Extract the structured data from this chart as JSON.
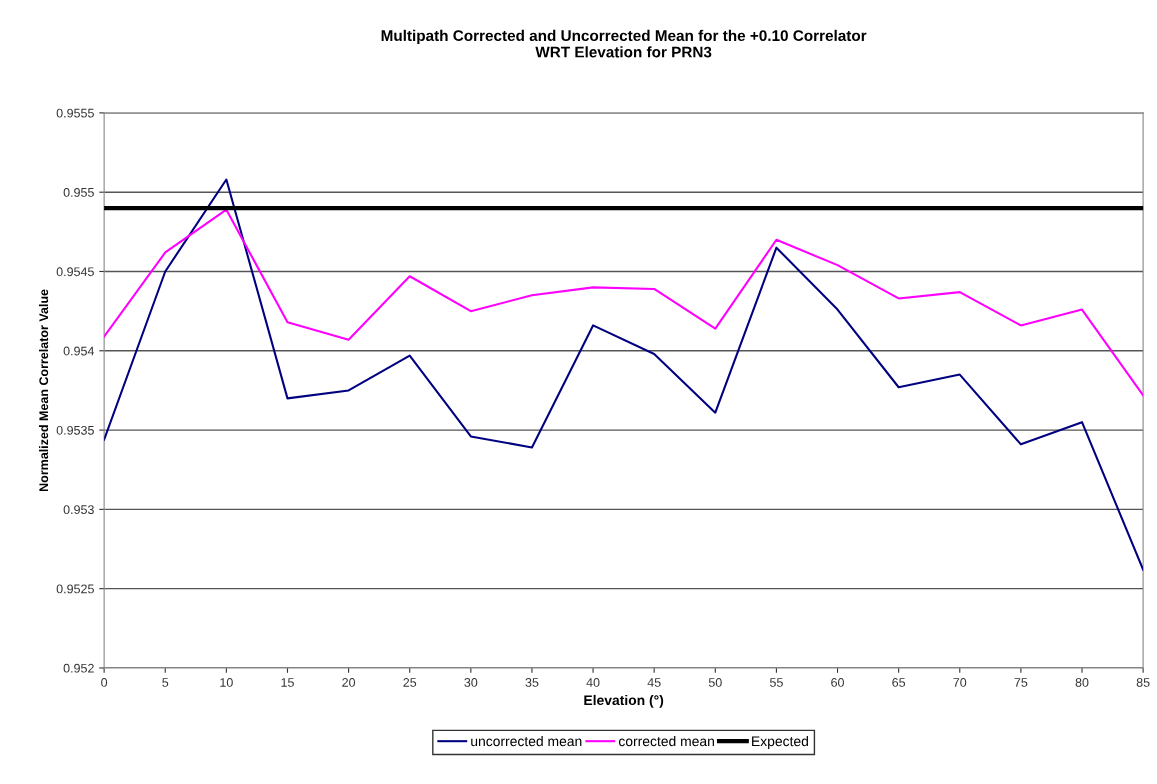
{
  "chart_data": {
    "type": "line",
    "title": "Multipath Corrected and Uncorrected Mean for the +0.10 Correlator\nWRT Elevation for PRN3",
    "xlabel": "Elevation (°)",
    "ylabel": "Normalized Mean Correlator Value",
    "x": [
      0,
      5,
      10,
      15,
      20,
      25,
      30,
      35,
      40,
      45,
      50,
      55,
      60,
      65,
      70,
      75,
      80,
      85
    ],
    "series": [
      {
        "name": "uncorrected mean",
        "color": "#000080",
        "values": [
          0.95344,
          0.9545,
          0.95508,
          0.9537,
          0.95375,
          0.95397,
          0.95346,
          0.95339,
          0.95416,
          0.95398,
          0.95361,
          0.95465,
          0.95426,
          0.95377,
          0.95385,
          0.95341,
          0.95355,
          0.95262
        ]
      },
      {
        "name": "corrected mean",
        "color": "#ff00ff",
        "values": [
          0.95409,
          0.95462,
          0.95489,
          0.95418,
          0.95407,
          0.95447,
          0.95425,
          0.95435,
          0.9544,
          0.95439,
          0.95414,
          0.9547,
          0.95454,
          0.95433,
          0.95437,
          0.95416,
          0.95426,
          0.95372
        ]
      },
      {
        "name": "Expected",
        "color": "#000000",
        "values": [
          0.9549,
          0.9549,
          0.9549,
          0.9549,
          0.9549,
          0.9549,
          0.9549,
          0.9549,
          0.9549,
          0.9549,
          0.9549,
          0.9549,
          0.9549,
          0.9549,
          0.9549,
          0.9549,
          0.9549,
          0.9549
        ]
      }
    ],
    "xlim": [
      0,
      85
    ],
    "xticks": [
      0,
      5,
      10,
      15,
      20,
      25,
      30,
      35,
      40,
      45,
      50,
      55,
      60,
      65,
      70,
      75,
      80,
      85
    ],
    "ylim": [
      0.952,
      0.9555
    ],
    "yticks": [
      0.952,
      0.9525,
      0.953,
      0.9535,
      0.954,
      0.9545,
      0.955,
      0.9555
    ],
    "grid": "y",
    "legend": "bottom",
    "marker": "none",
    "line_style": "solid"
  }
}
